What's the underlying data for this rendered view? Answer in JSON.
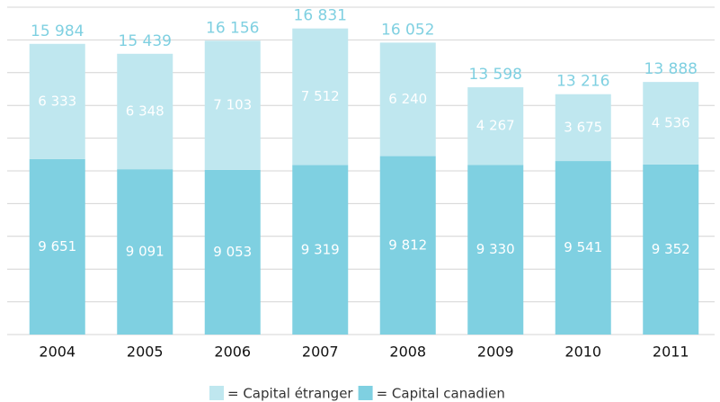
{
  "chart_data": {
    "type": "stacked_bar",
    "categories": [
      "2004",
      "2005",
      "2006",
      "2007",
      "2008",
      "2009",
      "2010",
      "2011"
    ],
    "series": [
      {
        "name": "= Capital canadien",
        "color": "#7fd0e1",
        "values": [
          9651,
          9091,
          9053,
          9319,
          9812,
          9330,
          9541,
          9352
        ],
        "value_labels": [
          "9 651",
          "9 091",
          "9 053",
          "9 319",
          "9 812",
          "9 330",
          "9 541",
          "9 352"
        ]
      },
      {
        "name": "= Capital étranger",
        "color": "#bfe7ef",
        "values": [
          6333,
          6348,
          7103,
          7512,
          6240,
          4267,
          3675,
          4536
        ],
        "value_labels": [
          "6 333",
          "6 348",
          "7 103",
          "7 512",
          "6 240",
          "4 267",
          "3 675",
          "4 536"
        ]
      }
    ],
    "totals": [
      15984,
      15439,
      16156,
      16831,
      16052,
      13598,
      13216,
      13888
    ],
    "totals_labels": [
      "15 984",
      "15 439",
      "16 156",
      "16 831",
      "16 052",
      "13 598",
      "13 216",
      "13 888"
    ],
    "ylim": [
      0,
      18000
    ],
    "yticks": [
      0,
      1800,
      3600,
      5400,
      7200,
      9000,
      10800,
      12600,
      14400,
      16200,
      18000
    ],
    "grid": true
  }
}
